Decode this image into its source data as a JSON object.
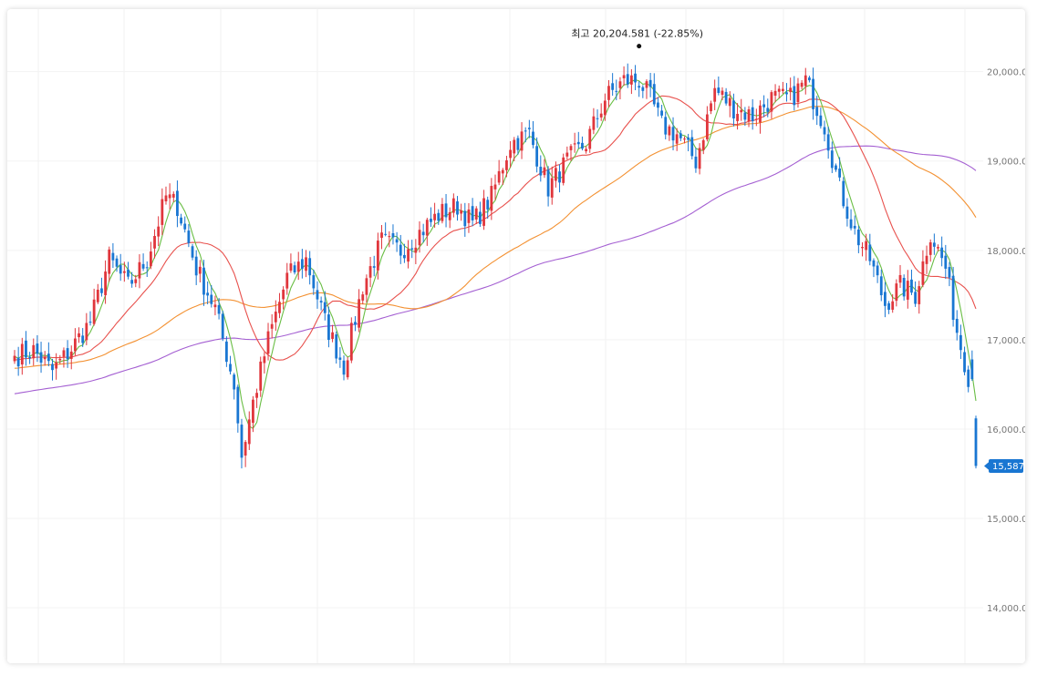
{
  "chart_data": {
    "type": "candlestick",
    "y_ticks": [
      "14,000.00",
      "15,000.00",
      "16,000.00",
      "17,000.00",
      "18,000.00",
      "19,000.00",
      "20,000.00"
    ],
    "y_tick_values": [
      14000,
      15000,
      16000,
      17000,
      18000,
      19000,
      20000
    ],
    "ylim": [
      13380,
      20700
    ],
    "grid": true,
    "high_marker": {
      "label": "최고 20,204.581 (-22.85%)",
      "value": 20204.581,
      "index": 165
    },
    "current_price": {
      "label": "15,587.78",
      "value": 15587.78
    },
    "colors": {
      "up": "#e0363c",
      "down": "#1976d2",
      "ma5": "#6abe45",
      "ma20": "#e8514d",
      "ma60": "#f39132",
      "ma120": "#a45fd2"
    },
    "anchors": [
      [
        0,
        16820
      ],
      [
        5,
        16880
      ],
      [
        10,
        16650
      ],
      [
        15,
        16900
      ],
      [
        20,
        17200
      ],
      [
        25,
        17900
      ],
      [
        30,
        17600
      ],
      [
        35,
        17900
      ],
      [
        40,
        18600
      ],
      [
        43,
        18500
      ],
      [
        48,
        17800
      ],
      [
        53,
        17350
      ],
      [
        58,
        16500
      ],
      [
        60,
        15700
      ],
      [
        63,
        16300
      ],
      [
        67,
        17000
      ],
      [
        72,
        17700
      ],
      [
        77,
        17900
      ],
      [
        82,
        17200
      ],
      [
        87,
        16700
      ],
      [
        92,
        17600
      ],
      [
        97,
        18100
      ],
      [
        102,
        18000
      ],
      [
        107,
        18200
      ],
      [
        112,
        18400
      ],
      [
        117,
        18500
      ],
      [
        121,
        18300
      ],
      [
        126,
        18600
      ],
      [
        131,
        19200
      ],
      [
        136,
        19300
      ],
      [
        141,
        18700
      ],
      [
        146,
        19000
      ],
      [
        151,
        19200
      ],
      [
        156,
        19700
      ],
      [
        161,
        19900
      ],
      [
        165,
        19900
      ],
      [
        168,
        19700
      ],
      [
        171,
        19400
      ],
      [
        175,
        19300
      ],
      [
        180,
        19000
      ],
      [
        185,
        19800
      ],
      [
        190,
        19600
      ],
      [
        195,
        19500
      ],
      [
        200,
        19700
      ],
      [
        205,
        19700
      ],
      [
        209,
        19900
      ],
      [
        214,
        19400
      ],
      [
        218,
        18700
      ],
      [
        222,
        18200
      ],
      [
        226,
        17900
      ],
      [
        230,
        17400
      ],
      [
        234,
        17600
      ],
      [
        238,
        17500
      ],
      [
        242,
        18200
      ],
      [
        246,
        17800
      ],
      [
        249,
        17100
      ],
      [
        252,
        16600
      ],
      [
        253,
        16000
      ],
      [
        254,
        15587.78
      ]
    ]
  }
}
